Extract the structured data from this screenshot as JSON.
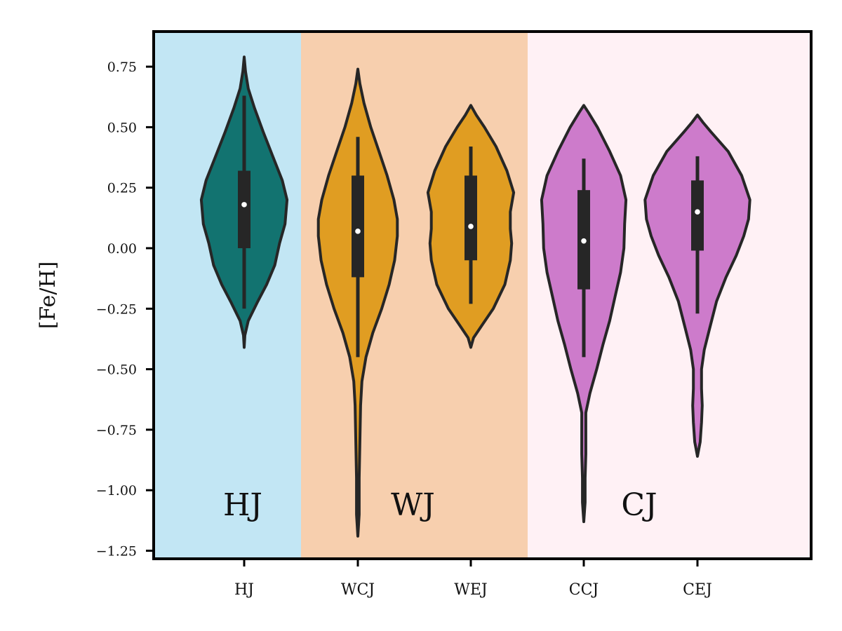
{
  "chart_data": {
    "type": "violin",
    "ylabel": "[Fe/H]",
    "ylim": [
      -1.28,
      0.9
    ],
    "yticks": [
      0.75,
      0.5,
      0.25,
      0.0,
      -0.25,
      -0.5,
      -0.75,
      -1.0,
      -1.25
    ],
    "ytick_labels": [
      "0.75",
      "0.50",
      "0.25",
      "0.00",
      "−0.25",
      "−0.50",
      "−0.75",
      "−1.00",
      "−1.25"
    ],
    "categories": [
      "HJ",
      "WCJ",
      "WEJ",
      "CCJ",
      "CEJ"
    ],
    "regions": [
      {
        "name": "HJ",
        "label": "HJ",
        "color": "#c2e6f4",
        "from_category": 0,
        "to_category": 0
      },
      {
        "name": "WJ",
        "label": "WJ",
        "color": "#f7cfae",
        "from_category": 1,
        "to_category": 2
      },
      {
        "name": "CJ",
        "label": "CJ",
        "color": "#fff1f5",
        "from_category": 3,
        "to_category": 4
      }
    ],
    "series": [
      {
        "name": "HJ",
        "color": "#127370",
        "min": -0.41,
        "max": 0.79,
        "q1": 0.0,
        "median": 0.18,
        "q3": 0.32,
        "whisker_low": -0.25,
        "whisker_high": 0.63,
        "profile": [
          [
            -0.41,
            0.0
          ],
          [
            -0.36,
            0.01
          ],
          [
            -0.3,
            0.06
          ],
          [
            -0.22,
            0.2
          ],
          [
            -0.15,
            0.33
          ],
          [
            -0.07,
            0.45
          ],
          [
            0.02,
            0.52
          ],
          [
            0.1,
            0.6
          ],
          [
            0.2,
            0.63
          ],
          [
            0.28,
            0.56
          ],
          [
            0.38,
            0.42
          ],
          [
            0.48,
            0.28
          ],
          [
            0.58,
            0.15
          ],
          [
            0.66,
            0.06
          ],
          [
            0.73,
            0.02
          ],
          [
            0.79,
            0.0
          ]
        ]
      },
      {
        "name": "WCJ",
        "color": "#e09d22",
        "min": -1.19,
        "max": 0.74,
        "q1": -0.12,
        "median": 0.07,
        "q3": 0.3,
        "whisker_low": -0.45,
        "whisker_high": 0.46,
        "profile": [
          [
            -1.19,
            0.0
          ],
          [
            -1.1,
            0.02
          ],
          [
            -0.95,
            0.02
          ],
          [
            -0.8,
            0.03
          ],
          [
            -0.65,
            0.04
          ],
          [
            -0.55,
            0.06
          ],
          [
            -0.45,
            0.12
          ],
          [
            -0.35,
            0.22
          ],
          [
            -0.25,
            0.35
          ],
          [
            -0.15,
            0.46
          ],
          [
            -0.05,
            0.54
          ],
          [
            0.05,
            0.58
          ],
          [
            0.12,
            0.58
          ],
          [
            0.2,
            0.53
          ],
          [
            0.3,
            0.43
          ],
          [
            0.4,
            0.31
          ],
          [
            0.5,
            0.19
          ],
          [
            0.6,
            0.09
          ],
          [
            0.68,
            0.03
          ],
          [
            0.74,
            0.0
          ]
        ]
      },
      {
        "name": "WEJ",
        "color": "#e09d22",
        "min": -0.41,
        "max": 0.59,
        "q1": -0.05,
        "median": 0.09,
        "q3": 0.3,
        "whisker_low": -0.23,
        "whisker_high": 0.42,
        "profile": [
          [
            -0.41,
            0.0
          ],
          [
            -0.37,
            0.04
          ],
          [
            -0.32,
            0.16
          ],
          [
            -0.25,
            0.33
          ],
          [
            -0.15,
            0.5
          ],
          [
            -0.05,
            0.58
          ],
          [
            0.02,
            0.6
          ],
          [
            0.08,
            0.58
          ],
          [
            0.15,
            0.58
          ],
          [
            0.23,
            0.63
          ],
          [
            0.32,
            0.53
          ],
          [
            0.42,
            0.37
          ],
          [
            0.5,
            0.2
          ],
          [
            0.55,
            0.08
          ],
          [
            0.59,
            0.0
          ]
        ]
      },
      {
        "name": "CCJ",
        "color": "#cd7bcb",
        "min": -1.13,
        "max": 0.59,
        "q1": -0.17,
        "median": 0.03,
        "q3": 0.24,
        "whisker_low": -0.45,
        "whisker_high": 0.37,
        "profile": [
          [
            -1.13,
            0.0
          ],
          [
            -1.05,
            0.02
          ],
          [
            -0.95,
            0.02
          ],
          [
            -0.85,
            0.03
          ],
          [
            -0.75,
            0.03
          ],
          [
            -0.68,
            0.03
          ],
          [
            -0.6,
            0.09
          ],
          [
            -0.5,
            0.19
          ],
          [
            -0.4,
            0.28
          ],
          [
            -0.3,
            0.38
          ],
          [
            -0.2,
            0.46
          ],
          [
            -0.1,
            0.54
          ],
          [
            0.0,
            0.59
          ],
          [
            0.1,
            0.6
          ],
          [
            0.2,
            0.62
          ],
          [
            0.3,
            0.54
          ],
          [
            0.4,
            0.38
          ],
          [
            0.5,
            0.2
          ],
          [
            0.56,
            0.07
          ],
          [
            0.59,
            0.0
          ]
        ]
      },
      {
        "name": "CEJ",
        "color": "#cd7bcb",
        "min": -0.86,
        "max": 0.55,
        "q1": -0.01,
        "median": 0.15,
        "q3": 0.28,
        "whisker_low": -0.27,
        "whisker_high": 0.38,
        "profile": [
          [
            -0.86,
            0.0
          ],
          [
            -0.8,
            0.04
          ],
          [
            -0.72,
            0.06
          ],
          [
            -0.65,
            0.07
          ],
          [
            -0.58,
            0.06
          ],
          [
            -0.5,
            0.06
          ],
          [
            -0.42,
            0.1
          ],
          [
            -0.33,
            0.18
          ],
          [
            -0.22,
            0.28
          ],
          [
            -0.12,
            0.42
          ],
          [
            -0.03,
            0.57
          ],
          [
            0.05,
            0.68
          ],
          [
            0.12,
            0.75
          ],
          [
            0.2,
            0.77
          ],
          [
            0.3,
            0.65
          ],
          [
            0.4,
            0.45
          ],
          [
            0.48,
            0.2
          ],
          [
            0.52,
            0.08
          ],
          [
            0.55,
            0.0
          ]
        ]
      }
    ]
  }
}
